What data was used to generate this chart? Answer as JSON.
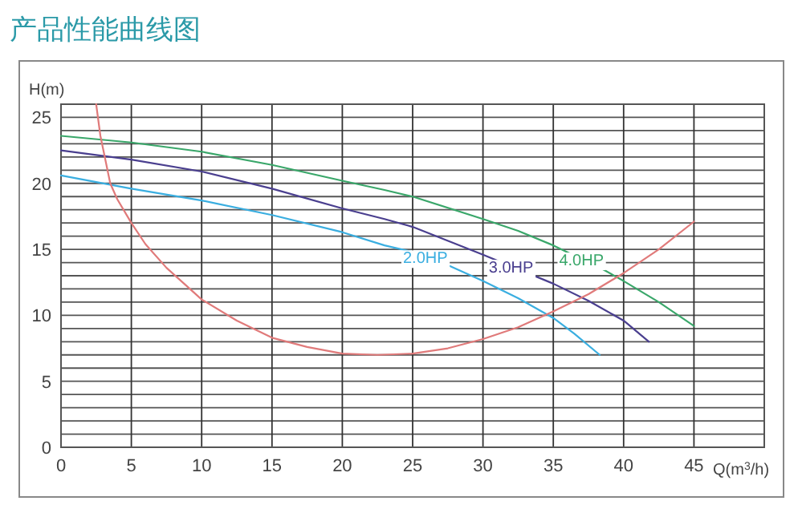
{
  "chart_data": {
    "type": "line",
    "title": "产品性能曲线图",
    "xlabel": "Q(m$^{3}$/h)",
    "ylabel": "H(m)",
    "xlim": [
      0,
      50
    ],
    "ylim": [
      0,
      26
    ],
    "xticks": [
      0,
      5,
      10,
      15,
      20,
      25,
      30,
      35,
      40,
      45
    ],
    "yticks": [
      0,
      5,
      10,
      15,
      20,
      25
    ],
    "grid": true,
    "marker": "none",
    "series": [
      {
        "name": "2.0HP",
        "color": "#3aaee0",
        "x": [
          0,
          5,
          10,
          15,
          20,
          23,
          25,
          27.5,
          30,
          32.5,
          35,
          36.5,
          38.3
        ],
        "values": [
          20.6,
          19.6,
          18.7,
          17.6,
          16.3,
          15.3,
          14.8,
          13.8,
          12.6,
          11.3,
          9.8,
          8.6,
          7.0
        ]
      },
      {
        "name": "3.0HP",
        "color": "#4a3f8f",
        "x": [
          0,
          5,
          10,
          15,
          20,
          23,
          25,
          30,
          35,
          37.5,
          40,
          41.8
        ],
        "values": [
          22.5,
          21.8,
          20.9,
          19.6,
          18.1,
          17.3,
          16.7,
          14.6,
          12.4,
          11.1,
          9.6,
          8.0
        ]
      },
      {
        "name": "4.0HP",
        "color": "#3aa76a",
        "x": [
          0,
          5,
          10,
          15,
          20,
          23,
          25,
          30,
          32.5,
          35,
          38.5,
          40,
          42.5,
          45
        ],
        "values": [
          23.6,
          23.1,
          22.4,
          21.4,
          20.2,
          19.5,
          19.0,
          17.3,
          16.4,
          15.3,
          13.5,
          12.6,
          11.0,
          9.2
        ]
      },
      {
        "color": "#e07a7a",
        "x": [
          2.5,
          2.8,
          3.5,
          4,
          5,
          6,
          7.5,
          10,
          12.5,
          15,
          17.5,
          20,
          22.5,
          25,
          27.5,
          30,
          32.5,
          35,
          37.5,
          40,
          42.5,
          45
        ],
        "values": [
          26,
          23.6,
          20,
          18.8,
          17,
          15.4,
          13.6,
          11.2,
          9.6,
          8.3,
          7.6,
          7.1,
          7.0,
          7.1,
          7.5,
          8.2,
          9.1,
          10.3,
          11.6,
          13.2,
          15.0,
          17.1
        ]
      }
    ]
  }
}
